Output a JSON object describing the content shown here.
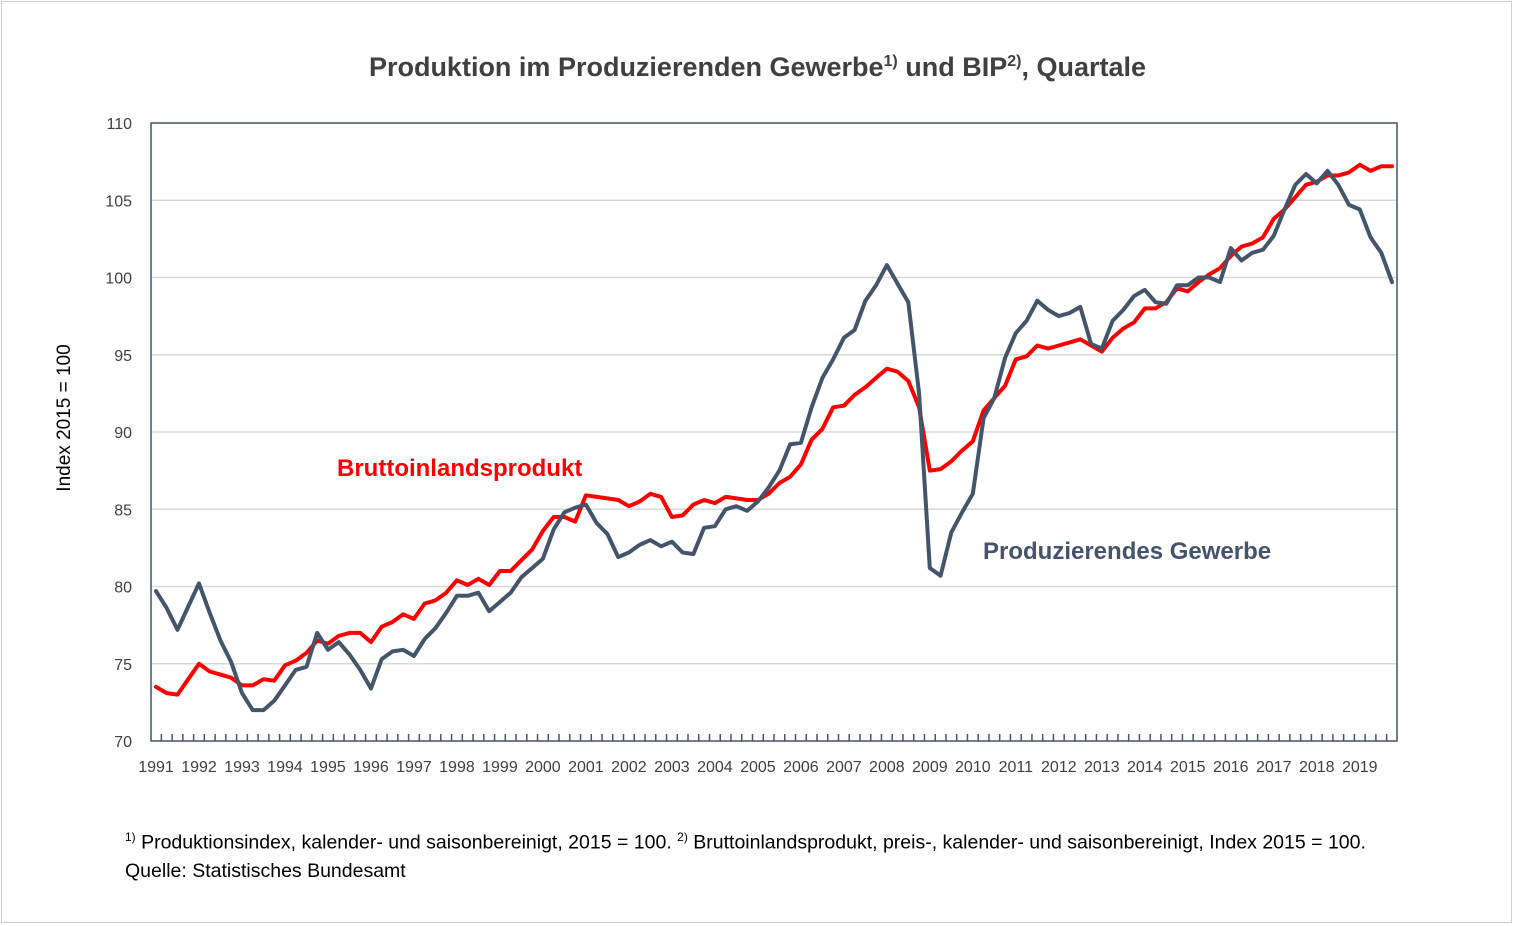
{
  "chart_data": {
    "type": "line",
    "title": "Produktion im Produzierenden Gewerbe",
    "title_sup1": "1)",
    "title_mid": " und BIP",
    "title_sup2": "2)",
    "title_end": ", Quartale",
    "ylabel": "Index 2015 = 100",
    "xlabel": "",
    "ylim": [
      70,
      110
    ],
    "yticks": [
      70,
      75,
      80,
      85,
      90,
      95,
      100,
      105,
      110
    ],
    "x_start": "1991Q1",
    "x_end": "2019Q4",
    "frequency": "quarterly",
    "xtick_labels": [
      "1991",
      "1992",
      "1993",
      "1994",
      "1995",
      "1996",
      "1997",
      "1998",
      "1999",
      "2000",
      "2001",
      "2002",
      "2003",
      "2004",
      "2005",
      "2006",
      "2007",
      "2008",
      "2009",
      "2010",
      "2011",
      "2012",
      "2013",
      "2014",
      "2015",
      "2016",
      "2017",
      "2018",
      "2019"
    ],
    "grid": true,
    "series": [
      {
        "name": "Bruttoinlandsprodukt",
        "color": "#ff0000",
        "values": [
          73.5,
          73.1,
          73.0,
          74.0,
          75.0,
          74.5,
          74.3,
          74.1,
          73.6,
          73.6,
          74.0,
          73.9,
          74.9,
          75.2,
          75.7,
          76.5,
          76.3,
          76.8,
          77.0,
          77.0,
          76.4,
          77.4,
          77.7,
          78.2,
          77.9,
          78.9,
          79.1,
          79.6,
          80.4,
          80.1,
          80.5,
          80.1,
          81.0,
          81.0,
          81.7,
          82.4,
          83.6,
          84.5,
          84.5,
          84.2,
          85.9,
          85.8,
          85.7,
          85.6,
          85.2,
          85.5,
          86.0,
          85.8,
          84.5,
          84.6,
          85.3,
          85.6,
          85.4,
          85.8,
          85.7,
          85.6,
          85.6,
          86.0,
          86.7,
          87.1,
          87.9,
          89.5,
          90.2,
          91.6,
          91.7,
          92.4,
          92.9,
          93.5,
          94.1,
          93.9,
          93.3,
          91.6,
          87.5,
          87.6,
          88.1,
          88.8,
          89.4,
          91.4,
          92.2,
          93.0,
          94.7,
          94.9,
          95.6,
          95.4,
          95.6,
          95.8,
          96.0,
          95.6,
          95.2,
          96.1,
          96.7,
          97.1,
          98.0,
          98.0,
          98.4,
          99.3,
          99.1,
          99.7,
          100.2,
          100.6,
          101.4,
          102.0,
          102.2,
          102.6,
          103.8,
          104.4,
          105.2,
          106.0,
          106.2,
          106.6,
          106.6,
          106.8,
          107.3,
          106.9,
          107.2,
          107.2
        ]
      },
      {
        "name": "Produzierendes Gewerbe",
        "color": "#44546a",
        "values": [
          79.7,
          78.6,
          77.2,
          78.7,
          80.2,
          78.3,
          76.5,
          75.1,
          73.1,
          72.0,
          72.0,
          72.6,
          73.6,
          74.6,
          74.8,
          77.0,
          75.9,
          76.4,
          75.6,
          74.6,
          73.4,
          75.3,
          75.8,
          75.9,
          75.5,
          76.6,
          77.3,
          78.3,
          79.4,
          79.4,
          79.6,
          78.4,
          79.0,
          79.6,
          80.6,
          81.2,
          81.8,
          83.7,
          84.8,
          85.1,
          85.3,
          84.1,
          83.4,
          81.9,
          82.2,
          82.7,
          83.0,
          82.6,
          82.9,
          82.2,
          82.1,
          83.8,
          83.9,
          85.0,
          85.2,
          84.9,
          85.5,
          86.4,
          87.5,
          89.2,
          89.3,
          91.6,
          93.5,
          94.7,
          96.1,
          96.6,
          98.5,
          99.5,
          100.8,
          99.6,
          98.4,
          92.5,
          81.2,
          80.7,
          83.5,
          84.8,
          86.0,
          90.9,
          92.2,
          94.8,
          96.4,
          97.2,
          98.5,
          97.9,
          97.5,
          97.7,
          98.1,
          95.7,
          95.4,
          97.2,
          97.9,
          98.8,
          99.2,
          98.4,
          98.3,
          99.5,
          99.5,
          100.0,
          100.0,
          99.7,
          101.9,
          101.1,
          101.6,
          101.8,
          102.7,
          104.4,
          106.0,
          106.7,
          106.1,
          106.9,
          106.0,
          104.7,
          104.4,
          102.6,
          101.6,
          99.7
        ]
      }
    ]
  },
  "footnote": {
    "sup1": "1)",
    "text1": " Produktionsindex, kalender- und saisonbereinigt, 2015 = 100. ",
    "sup2": "2)",
    "text2": " Bruttoinlandsprodukt, preis-, kalender- und saisonbereinigt, Index 2015 = 100.",
    "source": "Quelle: Statistisches Bundesamt"
  }
}
